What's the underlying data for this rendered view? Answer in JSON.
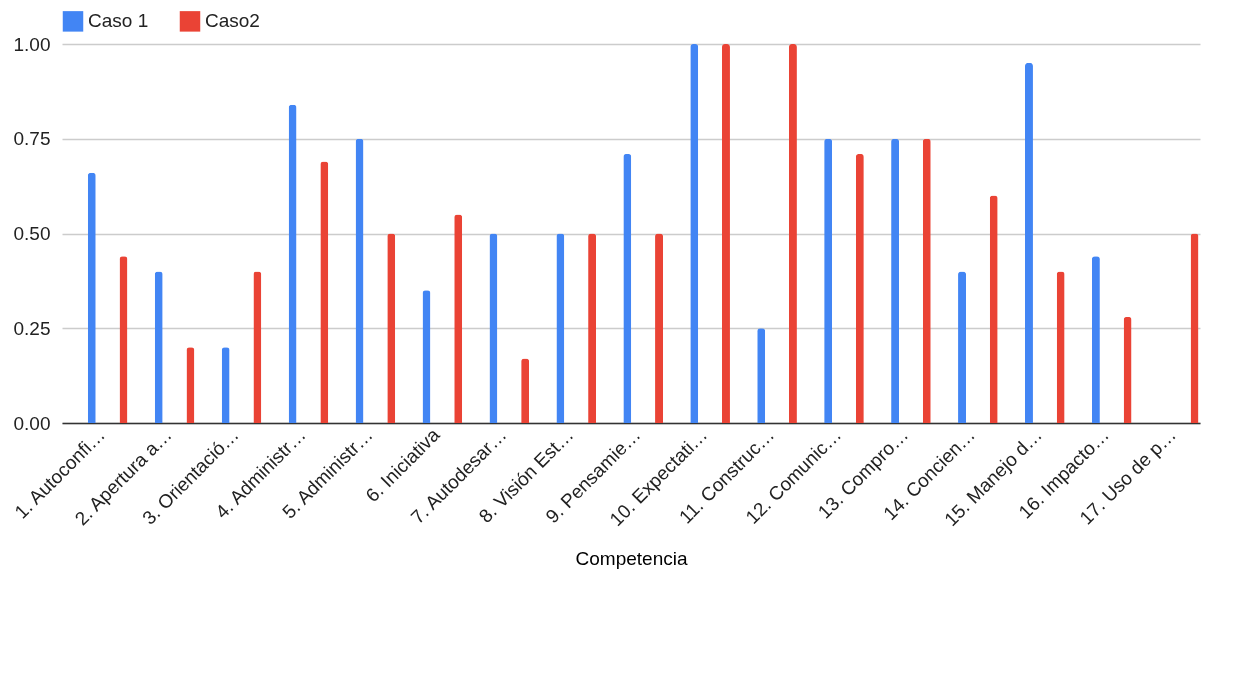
{
  "chart_data": {
    "type": "bar",
    "xlabel": "Competencia",
    "categories": [
      "1. Autoconfi…",
      "2. Apertura a…",
      "3. Orientació…",
      "4. Administr…",
      "5. Administr…",
      "6. Iniciativa",
      "7. Autodesar…",
      "8. Visión Est…",
      "9. Pensamie…",
      "10. Expectati…",
      "11. Construc…",
      "12. Comunic…",
      "13. Compro…",
      "14. Concien…",
      "15. Manejo d…",
      "16. Impacto…",
      "17. Uso de p…"
    ],
    "series": [
      {
        "name": "Caso 1",
        "color": "#4285f4",
        "values": [
          0.66,
          0.4,
          0.2,
          0.84,
          0.75,
          0.35,
          0.5,
          0.5,
          0.71,
          1.0,
          0.25,
          0.75,
          0.75,
          0.4,
          0.95,
          0.44,
          null
        ]
      },
      {
        "name": "Caso2",
        "color": "#ea4335",
        "values": [
          0.44,
          0.2,
          0.4,
          0.69,
          0.5,
          0.55,
          0.17,
          0.5,
          0.5,
          1.0,
          1.0,
          0.71,
          0.75,
          0.6,
          0.4,
          0.28,
          0.5
        ]
      }
    ],
    "ylim": [
      0,
      1
    ],
    "yticks": [
      {
        "value": 0,
        "label": "0.00"
      },
      {
        "value": 0.25,
        "label": "0.25"
      },
      {
        "value": 0.5,
        "label": "0.50"
      },
      {
        "value": 0.75,
        "label": "0.75"
      },
      {
        "value": 1,
        "label": "1.00"
      }
    ],
    "grid": "y",
    "legend": "top"
  }
}
